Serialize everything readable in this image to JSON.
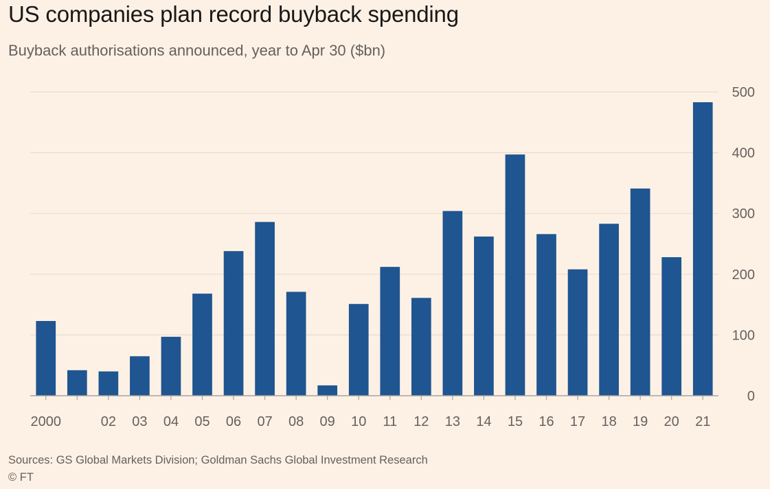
{
  "title": "US companies plan record buyback spending",
  "subtitle": "Buyback authorisations announced, year to Apr 30 ($bn)",
  "source": "Sources: GS Global Markets Division; Goldman Sachs Global Investment Research",
  "copyright": "© FT",
  "chart_data": {
    "type": "bar",
    "categories": [
      "2000",
      "",
      "02",
      "03",
      "04",
      "05",
      "06",
      "07",
      "08",
      "09",
      "10",
      "11",
      "12",
      "13",
      "14",
      "15",
      "16",
      "17",
      "18",
      "19",
      "20",
      "21"
    ],
    "values": [
      123,
      42,
      40,
      65,
      97,
      168,
      238,
      286,
      171,
      17,
      151,
      212,
      161,
      304,
      262,
      397,
      266,
      208,
      283,
      341,
      228,
      483
    ],
    "ylim": [
      0,
      500
    ],
    "yticks": [
      0,
      100,
      200,
      300,
      400,
      500
    ],
    "ytick_labels": [
      "0",
      "100",
      "200",
      "300",
      "400",
      "500"
    ],
    "y_axis_side": "right",
    "grid": true,
    "bar_color": "#1f5590",
    "xlabel": "",
    "ylabel": ""
  }
}
